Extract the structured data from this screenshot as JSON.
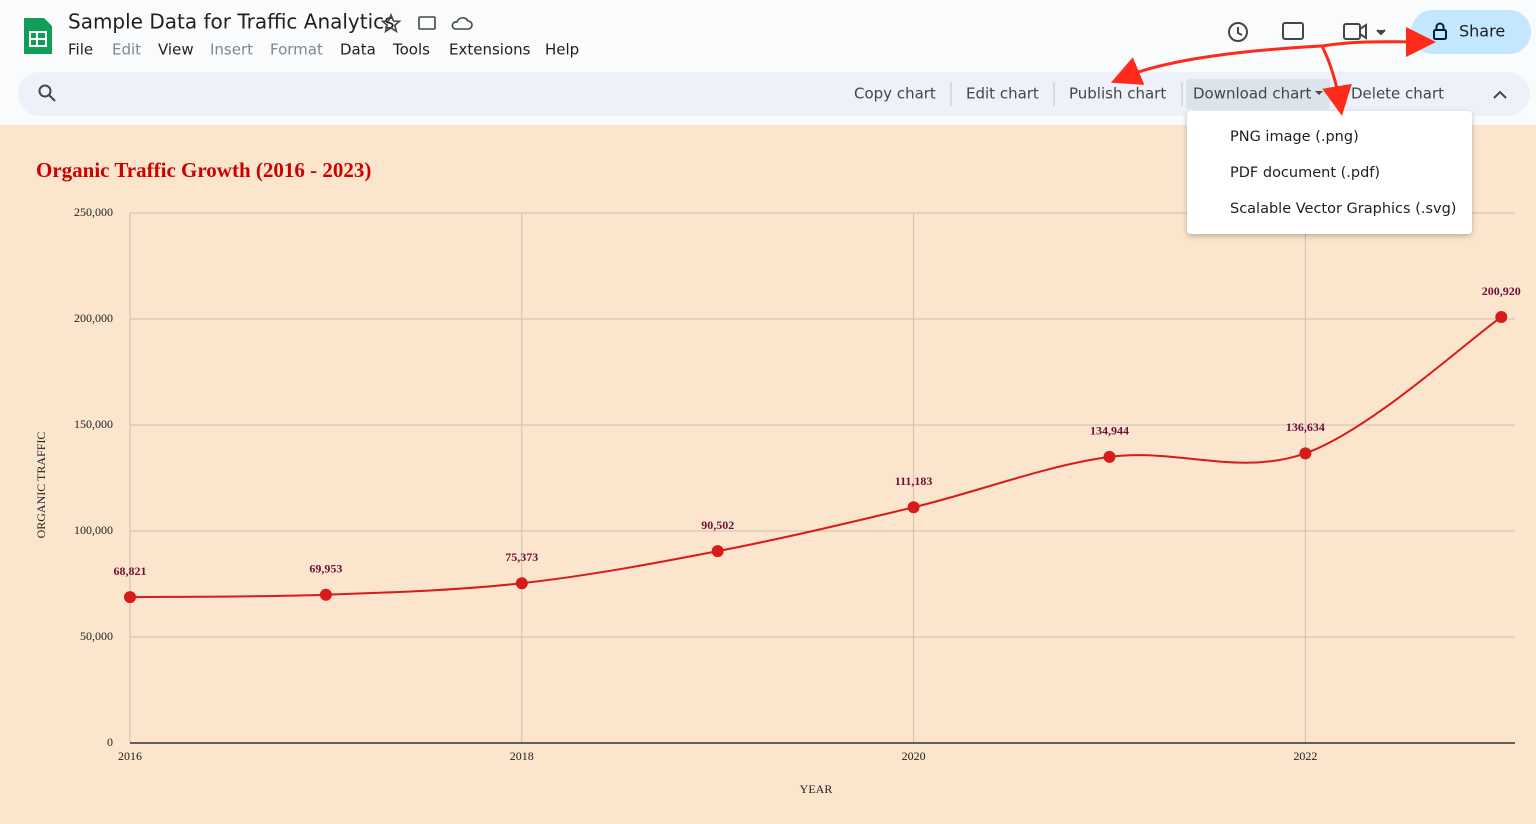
{
  "app": {
    "doc_title": "Sample Data for Traffic Analytics",
    "menu": [
      "File",
      "Edit",
      "View",
      "Insert",
      "Format",
      "Data",
      "Tools",
      "Extensions",
      "Help"
    ],
    "share": "Share",
    "toolbar": [
      "Copy chart",
      "Edit chart",
      "Publish chart",
      "Download chart",
      "Delete chart"
    ],
    "download_menu": [
      "PNG image (.png)",
      "PDF document (.pdf)",
      "Scalable Vector Graphics (.svg)"
    ]
  },
  "chart_data": {
    "type": "line",
    "title": "Organic Traffic Growth (2016 - 2023)",
    "x_label": "YEAR",
    "y_label": "ORGANIC TRAFFIC",
    "x": [
      2016,
      2017,
      2018,
      2019,
      2020,
      2021,
      2022,
      2023
    ],
    "series": [
      {
        "name": "Organic Traffic",
        "color": "#d91a1a",
        "values": [
          68821,
          69953,
          75373,
          90502,
          111183,
          134944,
          136634,
          200920
        ],
        "value_labels": [
          "68,821",
          "69,953",
          "75,373",
          "90,502",
          "111,183",
          "134,944",
          "136,634",
          "200,920"
        ]
      }
    ],
    "xlim": [
      2016,
      2023.07
    ],
    "xticks": [
      2016,
      2018,
      2020,
      2022
    ],
    "ylim": [
      0,
      250000
    ],
    "yticks": [
      0,
      {
        "value": 50000,
        "label": "50,000"
      },
      {
        "value": 100000,
        "label": "100,000"
      },
      {
        "value": 150000,
        "label": "150,000"
      },
      {
        "value": 200000,
        "label": "200,000"
      },
      {
        "value": 250000,
        "label": "250,000"
      }
    ],
    "grid": true,
    "smooth": true
  }
}
